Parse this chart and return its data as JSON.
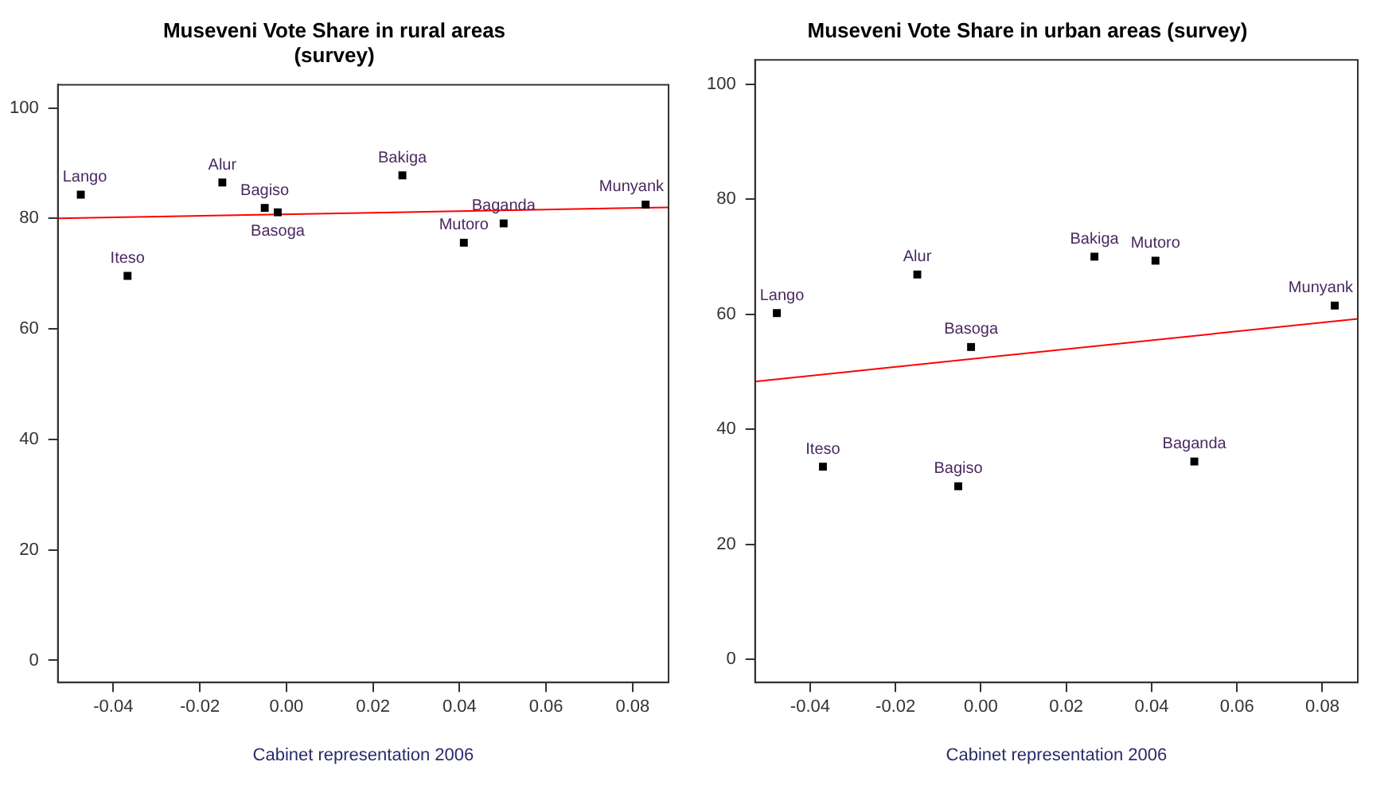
{
  "chart_data": [
    {
      "type": "line",
      "title": "Museveni Vote Share in rural areas\n(survey)",
      "xlabel": "Cabinet representation 2006",
      "xlim": [
        -0.0528,
        0.0883
      ],
      "xticks": [
        {
          "value": -0.04,
          "label": "-0.04"
        },
        {
          "value": -0.02,
          "label": "-0.02"
        },
        {
          "value": 0,
          "label": "0.00"
        },
        {
          "value": 0.02,
          "label": "0.02"
        },
        {
          "value": 0.04,
          "label": "0.04"
        },
        {
          "value": 0.06,
          "label": "0.06"
        },
        {
          "value": 0.08,
          "label": "0.08"
        }
      ],
      "ylim": [
        -4,
        104.2
      ],
      "yticks": [
        0,
        20,
        40,
        60,
        80,
        100
      ],
      "grid": false,
      "legend": false,
      "series": [
        {
          "type": "scatter",
          "marker": "square",
          "color": "#000000",
          "x": [
            -0.0475,
            -0.0367,
            -0.0148,
            -0.005,
            -0.002,
            0.0268,
            0.041,
            0.0502,
            0.083
          ],
          "values": [
            84.3,
            69.6,
            86.5,
            81.9,
            81.1,
            87.8,
            75.6,
            79.1,
            82.5
          ]
        },
        {
          "marker": "none",
          "color": "#ff0000",
          "x": [
            -0.0528,
            0.0883
          ],
          "values": [
            80.0,
            82.0
          ]
        }
      ],
      "annotations": [
        {
          "text": "Lango",
          "x": -0.0475,
          "y": 84.3
        },
        {
          "text": "Iteso",
          "x": -0.0367,
          "y": 69.6
        },
        {
          "text": "Alur",
          "x": -0.0148,
          "y": 86.5
        },
        {
          "text": "Bagiso",
          "x": -0.005,
          "y": 81.9
        },
        {
          "text": "Basoga",
          "x": -0.002,
          "y": 81.1
        },
        {
          "text": "Bakiga",
          "x": 0.0268,
          "y": 87.8
        },
        {
          "text": "Mutoro",
          "x": 0.041,
          "y": 75.6
        },
        {
          "text": "Baganda",
          "x": 0.0502,
          "y": 79.1
        },
        {
          "text": "Munyank",
          "x": 0.083,
          "y": 82.5
        }
      ]
    },
    {
      "type": "line",
      "title": "Museveni Vote Share in urban areas (survey)",
      "xlabel": "Cabinet representation 2006",
      "xlim": [
        -0.0529,
        0.0883
      ],
      "xticks": [
        {
          "value": -0.04,
          "label": "-0.04"
        },
        {
          "value": -0.02,
          "label": "-0.02"
        },
        {
          "value": 0,
          "label": "0.00"
        },
        {
          "value": 0.02,
          "label": "0.02"
        },
        {
          "value": 0.04,
          "label": "0.04"
        },
        {
          "value": 0.06,
          "label": "0.06"
        },
        {
          "value": 0.08,
          "label": "0.08"
        }
      ],
      "ylim": [
        -4,
        104.2
      ],
      "yticks": [
        0,
        20,
        40,
        60,
        80,
        100
      ],
      "grid": false,
      "legend": false,
      "series": [
        {
          "type": "scatter",
          "marker": "square",
          "color": "#000000",
          "x": [
            -0.0478,
            -0.037,
            -0.0149,
            -0.0053,
            -0.0023,
            0.0266,
            0.0409,
            0.05,
            0.0829
          ],
          "values": [
            60.2,
            33.5,
            66.9,
            30.1,
            54.3,
            70.0,
            69.3,
            34.4,
            61.5
          ]
        },
        {
          "marker": "none",
          "color": "#ff0000",
          "x": [
            -0.0529,
            0.0883
          ],
          "values": [
            48.3,
            59.2
          ]
        }
      ],
      "annotations": [
        {
          "text": "Lango",
          "x": -0.0478,
          "y": 60.2
        },
        {
          "text": "Iteso",
          "x": -0.037,
          "y": 33.5
        },
        {
          "text": "Alur",
          "x": -0.0149,
          "y": 66.9
        },
        {
          "text": "Bagiso",
          "x": -0.0053,
          "y": 30.1
        },
        {
          "text": "Basoga",
          "x": -0.0023,
          "y": 54.3
        },
        {
          "text": "Bakiga",
          "x": 0.0266,
          "y": 70.0
        },
        {
          "text": "Mutoro",
          "x": 0.0409,
          "y": 69.3
        },
        {
          "text": "Baganda",
          "x": 0.05,
          "y": 34.4
        },
        {
          "text": "Munyank",
          "x": 0.0829,
          "y": 61.5
        }
      ]
    }
  ]
}
